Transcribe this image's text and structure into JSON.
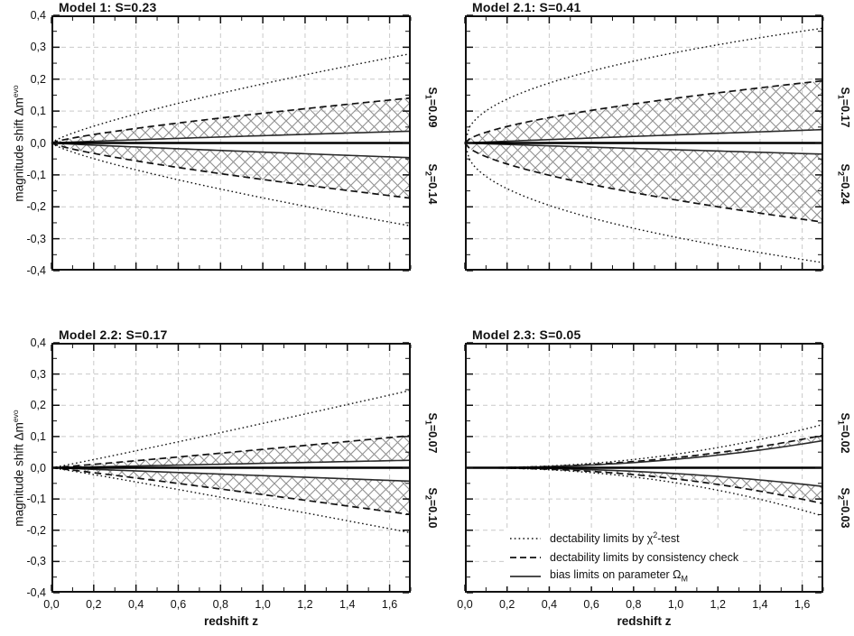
{
  "figure": {
    "background": "#ffffff",
    "axis_color": "#111111",
    "grid_color": "#c9c9c9",
    "hatch_color": "#919191",
    "curve_color": "#111111",
    "solid_curve_color": "#2b2b2b",
    "xlabel": "redshift z",
    "ylabel": {
      "text": "magnitude shift Δm",
      "sup": "evo"
    },
    "x_ticks": [
      "0,0",
      "0,2",
      "0,4",
      "0,6",
      "0,8",
      "1,0",
      "1,2",
      "1,4",
      "1,6"
    ],
    "x_tick_values": [
      0,
      0.2,
      0.4,
      0.6,
      0.8,
      1.0,
      1.2,
      1.4,
      1.6
    ],
    "y_ticks": [
      "0,4",
      "0,3",
      "0,2",
      "0,1",
      "0,0",
      "-0,1",
      "-0,2",
      "-0,3",
      "-0,4"
    ],
    "y_tick_values": [
      0.4,
      0.3,
      0.2,
      0.1,
      0.0,
      -0.1,
      -0.2,
      -0.3,
      -0.4
    ]
  },
  "legend": {
    "items": [
      {
        "line": "dotted",
        "pre": "dectability limits by ",
        "base": "χ",
        "sup": "2",
        "post": "-test"
      },
      {
        "line": "dashed",
        "pre": "dectability limits by consistency check",
        "post": ""
      },
      {
        "line": "solid",
        "pre": "bias limits on parameter ",
        "base": "Ω",
        "sub": "M",
        "post": ""
      }
    ]
  },
  "chart_data": {
    "type": "line",
    "x_range": [
      0,
      1.7
    ],
    "y_range": [
      -0.4,
      0.4
    ],
    "x_label": "redshift z",
    "y_label": "magnitude shift Δm^evo",
    "x_major_step": 0.2,
    "x_minor_step": 0.1,
    "y_major_step": 0.1,
    "y_minor_step": 0.05,
    "grid": "dashed light-gray at major ticks",
    "note": "Each panel: dotted = detectability limit by chi^2-test, dashed = detectability limit by consistency check, thin solid = bias limits on Omega_M, thick solid = zero line. Cross-hatched band lies between thin solid and dashed curves. Curves follow y = end*(z/1.7)^exp.",
    "panels": [
      {
        "id": "model-1",
        "title": "Model 1: S=0.23",
        "s1": {
          "base": "S",
          "sub": "1",
          "rest": "=0.09"
        },
        "s2": {
          "base": "S",
          "sub": "2",
          "rest": "=0.14"
        },
        "series": [
          {
            "name": "chi2-test upper",
            "style": "dotted",
            "end": 0.28,
            "exp": 0.78
          },
          {
            "name": "consistency upper",
            "style": "dashed",
            "end": 0.141,
            "exp": 0.78
          },
          {
            "name": "bias-limit upper",
            "style": "solid",
            "end": 0.037,
            "exp": 0.9
          },
          {
            "name": "bias-limit lower",
            "style": "solid",
            "end": -0.046,
            "exp": 0.9
          },
          {
            "name": "consistency lower",
            "style": "dashed",
            "end": -0.173,
            "exp": 0.78
          },
          {
            "name": "chi2-test lower",
            "style": "dotted",
            "end": -0.26,
            "exp": 0.78
          }
        ]
      },
      {
        "id": "model-2-1",
        "title": "Model 2.1: S=0.41",
        "s1": {
          "base": "S",
          "sub": "1",
          "rest": "=0.17"
        },
        "s2": {
          "base": "S",
          "sub": "2",
          "rest": "=0.24"
        },
        "series": [
          {
            "name": "chi2-test upper",
            "style": "dotted",
            "end": 0.36,
            "exp": 0.45
          },
          {
            "name": "consistency upper",
            "style": "dashed",
            "end": 0.195,
            "exp": 0.62
          },
          {
            "name": "bias-limit upper",
            "style": "solid",
            "end": 0.042,
            "exp": 0.95
          },
          {
            "name": "bias-limit lower",
            "style": "solid",
            "end": -0.035,
            "exp": 0.95
          },
          {
            "name": "consistency lower",
            "style": "dashed",
            "end": -0.248,
            "exp": 0.62
          },
          {
            "name": "chi2-test lower",
            "style": "dotted",
            "end": -0.375,
            "exp": 0.45
          }
        ]
      },
      {
        "id": "model-2-2",
        "title": "Model 2.2: S=0.17",
        "s1": {
          "base": "S",
          "sub": "1",
          "rest": "=0.07"
        },
        "s2": {
          "base": "S",
          "sub": "2",
          "rest": "=0.10"
        },
        "series": [
          {
            "name": "chi2-test upper",
            "style": "dotted",
            "end": 0.248,
            "exp": 1.05
          },
          {
            "name": "consistency upper",
            "style": "dashed",
            "end": 0.103,
            "exp": 1.05
          },
          {
            "name": "bias-limit upper",
            "style": "solid",
            "end": 0.024,
            "exp": 1.0
          },
          {
            "name": "bias-limit lower",
            "style": "solid",
            "end": -0.043,
            "exp": 1.0
          },
          {
            "name": "consistency lower",
            "style": "dashed",
            "end": -0.15,
            "exp": 1.05
          },
          {
            "name": "chi2-test lower",
            "style": "dotted",
            "end": -0.208,
            "exp": 1.05
          }
        ]
      },
      {
        "id": "model-2-3",
        "title": "Model 2.3: S=0.05",
        "s1": {
          "base": "S",
          "sub": "1",
          "rest": "=0.02"
        },
        "s2": {
          "base": "S",
          "sub": "2",
          "rest": "=0.03"
        },
        "series": [
          {
            "name": "chi2-test upper",
            "style": "dotted",
            "end": 0.139,
            "exp": 2.2
          },
          {
            "name": "consistency upper",
            "style": "dashed",
            "end": 0.104,
            "exp": 2.2
          },
          {
            "name": "bias-limit upper",
            "style": "solid",
            "end": 0.087,
            "exp": 2.2
          },
          {
            "name": "bias-limit lower",
            "style": "solid",
            "end": -0.06,
            "exp": 2.2
          },
          {
            "name": "consistency lower",
            "style": "dashed",
            "end": -0.115,
            "exp": 2.2
          },
          {
            "name": "chi2-test lower",
            "style": "dotted",
            "end": -0.155,
            "exp": 2.2
          }
        ]
      }
    ]
  }
}
